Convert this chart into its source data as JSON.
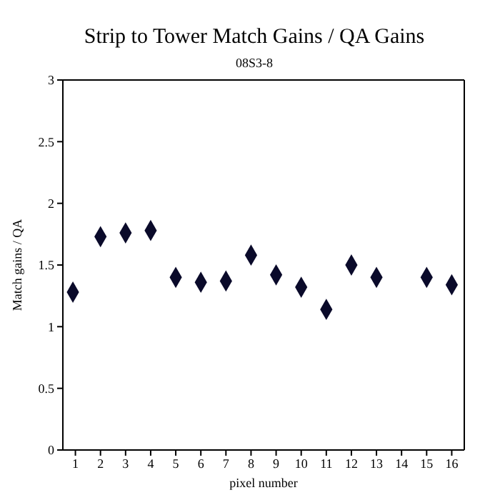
{
  "chart_data": {
    "type": "scatter",
    "title": "Strip to Tower Match Gains / QA Gains",
    "subtitle": "08S3-8",
    "xlabel": "pixel number",
    "ylabel": "Match gains / QA",
    "x": [
      0.9,
      2,
      3,
      4,
      5,
      6,
      7,
      8,
      9,
      10,
      11,
      12,
      13,
      15,
      16
    ],
    "series": [
      {
        "color": "#0a0a2a",
        "values": [
          1.28,
          1.73,
          1.76,
          1.78,
          1.4,
          1.36,
          1.37,
          1.58,
          1.42,
          1.32,
          1.14,
          1.5,
          1.4,
          1.4,
          1.34
        ]
      }
    ],
    "xlim": [
      0.5,
      16.5
    ],
    "xticks": [
      1,
      2,
      3,
      4,
      5,
      6,
      7,
      8,
      9,
      10,
      11,
      12,
      13,
      14,
      15,
      16
    ],
    "ylim": [
      0,
      3
    ],
    "yticks": [
      0,
      0.5,
      1,
      1.5,
      2,
      2.5,
      3
    ],
    "marker": "diamond",
    "grid": false,
    "legend": false
  }
}
